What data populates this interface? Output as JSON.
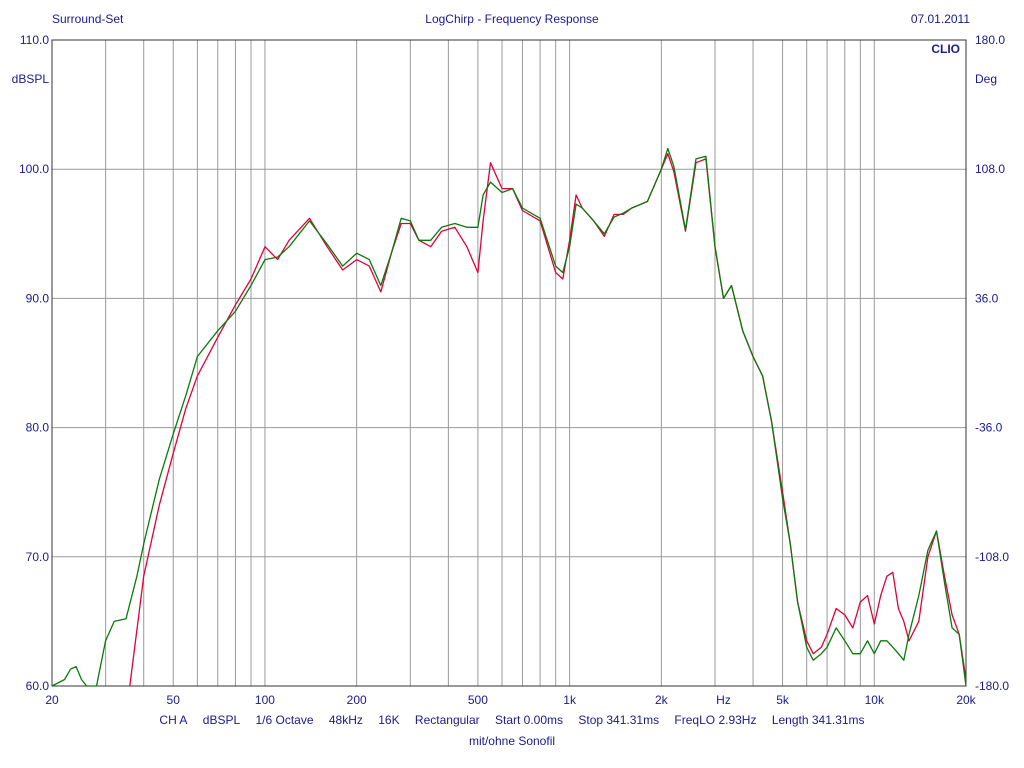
{
  "header": {
    "left": "Surround-Set",
    "center": "LogChirp - Frequency Response",
    "right": "07.01.2011",
    "brand": "CLIO"
  },
  "footer": {
    "items": [
      "CH A",
      "dBSPL",
      "1/6 Octave",
      "48kHz",
      "16K",
      "Rectangular",
      "Start 0.00ms",
      "Stop 341.31ms",
      "FreqLO 2.93Hz",
      "Length 341.31ms"
    ],
    "note": "mit/ohne Sonofil"
  },
  "colors": {
    "text": "#1a1a8c",
    "grid": "#9a9a9a",
    "series_red": "#e0003c",
    "series_green": "#0a7a0a"
  },
  "chart_data": {
    "type": "line",
    "x_scale": "log",
    "xlim": [
      20,
      20000
    ],
    "ylim": [
      60,
      110
    ],
    "y2lim": [
      -180,
      180
    ],
    "ylabel": "dBSPL",
    "y2label": "Deg",
    "xlabel": "Hz",
    "grid": true,
    "x_ticks": [
      {
        "v": 20,
        "label": "20"
      },
      {
        "v": 50,
        "label": "50"
      },
      {
        "v": 100,
        "label": "100"
      },
      {
        "v": 200,
        "label": "200"
      },
      {
        "v": 500,
        "label": "500"
      },
      {
        "v": 1000,
        "label": "1k"
      },
      {
        "v": 2000,
        "label": "2k"
      },
      {
        "v": 5000,
        "label": "5k"
      },
      {
        "v": 10000,
        "label": "10k"
      },
      {
        "v": 20000,
        "label": "20k"
      }
    ],
    "y_ticks": [
      {
        "v": 110,
        "label": "110.0"
      },
      {
        "v": 100,
        "label": "100.0"
      },
      {
        "v": 90,
        "label": "90.0"
      },
      {
        "v": 80,
        "label": "80.0"
      },
      {
        "v": 70,
        "label": "70.0"
      },
      {
        "v": 60,
        "label": "60.0"
      }
    ],
    "y2_ticks": [
      {
        "v": 180,
        "label": "180.0"
      },
      {
        "v": 108,
        "label": "108.0"
      },
      {
        "v": 36,
        "label": "36.0"
      },
      {
        "v": -36,
        "label": "-36.0"
      },
      {
        "v": -108,
        "label": "-108.0"
      },
      {
        "v": -180,
        "label": "-180.0"
      }
    ],
    "series": [
      {
        "color": "#e0003c",
        "x": [
          36,
          40,
          45,
          50,
          55,
          60,
          70,
          80,
          90,
          100,
          110,
          120,
          140,
          160,
          180,
          200,
          220,
          240,
          260,
          280,
          300,
          320,
          350,
          380,
          420,
          460,
          500,
          520,
          550,
          600,
          650,
          700,
          800,
          900,
          950,
          1000,
          1050,
          1100,
          1200,
          1300,
          1400,
          1500,
          1600,
          1800,
          2000,
          2100,
          2200,
          2400,
          2600,
          2800,
          3000,
          3200,
          3400,
          3700,
          4000,
          4300,
          4600,
          5000,
          5300,
          5600,
          6000,
          6300,
          6700,
          7000,
          7500,
          8000,
          8500,
          9000,
          9500,
          10000,
          10500,
          11000,
          11500,
          12000,
          12500,
          13000,
          14000,
          15000,
          16000,
          17000,
          18000,
          19000,
          20000
        ],
        "y": [
          60.0,
          68.5,
          74.0,
          78.0,
          81.5,
          84.0,
          87.0,
          89.5,
          91.5,
          94.0,
          93.0,
          94.5,
          96.2,
          94.0,
          92.2,
          93.0,
          92.5,
          90.5,
          93.5,
          95.8,
          95.8,
          94.5,
          94.0,
          95.2,
          95.5,
          94.0,
          92.0,
          96.0,
          100.5,
          98.5,
          98.5,
          96.8,
          96.0,
          92.0,
          91.5,
          94.5,
          98.0,
          97.0,
          96.0,
          94.8,
          96.5,
          96.5,
          97.0,
          97.5,
          100.0,
          101.2,
          99.8,
          95.2,
          100.5,
          100.8,
          94.0,
          90.0,
          91.0,
          87.5,
          85.5,
          84.0,
          80.5,
          75.0,
          71.0,
          66.5,
          63.5,
          62.5,
          63.0,
          64.0,
          66.0,
          65.5,
          64.5,
          66.5,
          67.0,
          64.8,
          67.0,
          68.5,
          68.8,
          66.0,
          65.0,
          63.5,
          65.0,
          70.0,
          72.0,
          68.5,
          65.5,
          64.0,
          60.5
        ]
      },
      {
        "color": "#0a7a0a",
        "x": [
          20,
          22,
          23,
          24,
          25,
          26,
          28,
          30,
          32,
          35,
          38,
          40,
          45,
          50,
          55,
          60,
          70,
          80,
          90,
          100,
          110,
          120,
          140,
          160,
          180,
          200,
          220,
          240,
          260,
          280,
          300,
          320,
          350,
          380,
          420,
          460,
          500,
          520,
          550,
          600,
          650,
          700,
          800,
          900,
          950,
          1000,
          1050,
          1100,
          1200,
          1300,
          1400,
          1500,
          1600,
          1800,
          2000,
          2100,
          2200,
          2400,
          2600,
          2800,
          3000,
          3200,
          3400,
          3700,
          4000,
          4300,
          4600,
          5000,
          5300,
          5600,
          6000,
          6300,
          6700,
          7000,
          7500,
          8000,
          8500,
          9000,
          9500,
          10000,
          10500,
          11000,
          11500,
          12000,
          12500,
          13000,
          14000,
          15000,
          16000,
          17000,
          18000,
          19000,
          20000
        ],
        "y": [
          60.0,
          60.5,
          61.3,
          61.5,
          60.5,
          58.5,
          60.0,
          63.5,
          65.0,
          65.2,
          68.5,
          71.0,
          76.0,
          79.5,
          82.5,
          85.5,
          87.5,
          89.0,
          91.0,
          93.0,
          93.2,
          94.0,
          96.0,
          94.2,
          92.5,
          93.5,
          93.0,
          91.0,
          93.5,
          96.2,
          96.0,
          94.5,
          94.5,
          95.5,
          95.8,
          95.5,
          95.5,
          98.0,
          99.0,
          98.2,
          98.5,
          97.0,
          96.2,
          92.5,
          92.0,
          94.0,
          97.3,
          97.0,
          96.0,
          95.0,
          96.3,
          96.6,
          97.0,
          97.5,
          100.0,
          101.6,
          100.2,
          95.3,
          100.8,
          101.0,
          94.0,
          90.0,
          91.0,
          87.5,
          85.5,
          84.0,
          80.5,
          74.5,
          71.0,
          66.5,
          63.0,
          62.0,
          62.5,
          63.0,
          64.5,
          63.5,
          62.5,
          62.5,
          63.5,
          62.5,
          63.5,
          63.5,
          63.0,
          62.5,
          62.0,
          64.0,
          67.0,
          70.5,
          72.0,
          68.0,
          64.5,
          64.0,
          60.0
        ]
      }
    ]
  }
}
